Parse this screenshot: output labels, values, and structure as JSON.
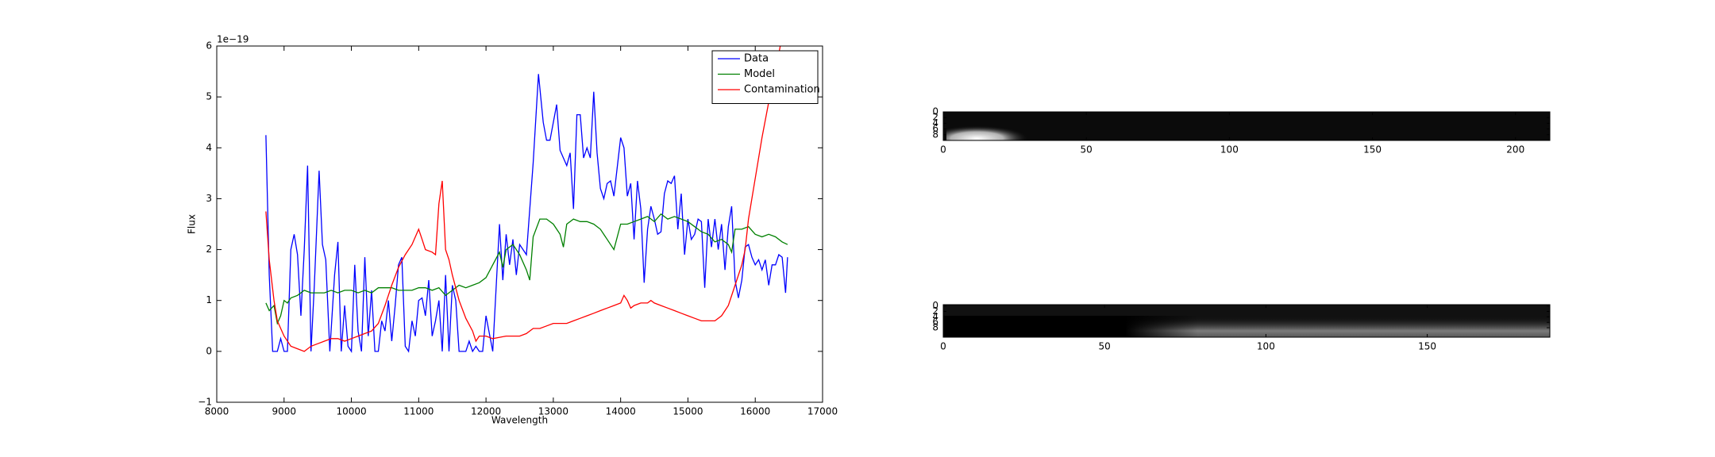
{
  "chart_data": [
    {
      "type": "line",
      "xlabel": "Wavelength",
      "ylabel": "Flux",
      "offset_text": "1e−19",
      "xlim": [
        8000,
        17000
      ],
      "xticks": [
        8000,
        9000,
        10000,
        11000,
        12000,
        13000,
        14000,
        15000,
        16000,
        17000
      ],
      "ylim": [
        -1,
        6
      ],
      "yticks": [
        {
          "value": -1,
          "label": "−1"
        },
        0,
        1,
        2,
        3,
        4,
        5,
        6
      ],
      "legend": "upper right",
      "series": [
        {
          "name": "Data",
          "color": "#0000ff",
          "x": [
            8730,
            8780,
            8830,
            8900,
            8950,
            9000,
            9050,
            9100,
            9150,
            9200,
            9250,
            9300,
            9350,
            9400,
            9450,
            9520,
            9570,
            9620,
            9680,
            9750,
            9800,
            9850,
            9900,
            9950,
            10000,
            10050,
            10100,
            10150,
            10200,
            10250,
            10300,
            10350,
            10400,
            10450,
            10500,
            10550,
            10600,
            10650,
            10700,
            10750,
            10800,
            10850,
            10900,
            10950,
            11000,
            11050,
            11100,
            11150,
            11200,
            11250,
            11300,
            11350,
            11400,
            11450,
            11500,
            11550,
            11600,
            11650,
            11700,
            11750,
            11800,
            11850,
            11900,
            11950,
            12000,
            12100,
            12200,
            12250,
            12300,
            12350,
            12400,
            12450,
            12500,
            12600,
            12700,
            12780,
            12850,
            12900,
            12950,
            13000,
            13050,
            13100,
            13200,
            13250,
            13300,
            13350,
            13400,
            13450,
            13500,
            13550,
            13600,
            13650,
            13700,
            13750,
            13800,
            13850,
            13900,
            14000,
            14050,
            14100,
            14150,
            14200,
            14250,
            14300,
            14350,
            14400,
            14450,
            14500,
            14550,
            14600,
            14650,
            14700,
            14750,
            14800,
            14850,
            14900,
            14950,
            15000,
            15050,
            15100,
            15150,
            15200,
            15250,
            15300,
            15350,
            15400,
            15450,
            15500,
            15550,
            15600,
            15650,
            15700,
            15750,
            15800,
            15850,
            15900,
            15950,
            16000,
            16050,
            16100,
            16150,
            16200,
            16250,
            16300,
            16350,
            16400,
            16450,
            16480
          ],
          "values": [
            4.25,
            1.5,
            0,
            0,
            0.25,
            0,
            0,
            2.0,
            2.3,
            1.9,
            0.7,
            2.0,
            3.65,
            0,
            1.3,
            3.55,
            2.1,
            1.8,
            0,
            1.5,
            2.15,
            0,
            0.9,
            0.1,
            0,
            1.7,
            0.4,
            0,
            1.85,
            0.3,
            1.2,
            0,
            0,
            0.6,
            0.4,
            1.0,
            0.2,
            0.9,
            1.7,
            1.85,
            0.1,
            0,
            0.6,
            0.3,
            1.0,
            1.05,
            0.7,
            1.4,
            0.3,
            0.6,
            1.0,
            0,
            1.5,
            0,
            1.3,
            1.0,
            0,
            0,
            0,
            0.2,
            0,
            0.1,
            0,
            0,
            0.7,
            0,
            2.5,
            1.4,
            2.3,
            1.7,
            2.2,
            1.5,
            2.1,
            1.9,
            3.7,
            5.45,
            4.5,
            4.15,
            4.15,
            4.5,
            4.85,
            3.95,
            3.65,
            3.9,
            2.8,
            4.65,
            4.65,
            3.8,
            4.0,
            3.8,
            5.1,
            3.9,
            3.2,
            3.0,
            3.3,
            3.35,
            3.05,
            4.2,
            4.0,
            3.05,
            3.3,
            2.2,
            3.35,
            2.8,
            1.35,
            2.4,
            2.85,
            2.6,
            2.3,
            2.35,
            3.1,
            3.35,
            3.3,
            3.45,
            2.4,
            3.1,
            1.9,
            2.6,
            2.2,
            2.3,
            2.6,
            2.55,
            1.25,
            2.6,
            2.05,
            2.6,
            2.0,
            2.5,
            1.6,
            2.45,
            2.85,
            1.4,
            1.05,
            1.4,
            2.05,
            2.1,
            1.85,
            1.7,
            1.8,
            1.6,
            1.8,
            1.3,
            1.7,
            1.7,
            1.9,
            1.85,
            1.15,
            1.85
          ]
        },
        {
          "name": "Model",
          "color": "#008000",
          "x": [
            8730,
            8780,
            8850,
            8900,
            8950,
            9000,
            9050,
            9100,
            9200,
            9300,
            9400,
            9500,
            9600,
            9700,
            9800,
            9900,
            10000,
            10100,
            10200,
            10300,
            10400,
            10500,
            10600,
            10700,
            10800,
            10900,
            11000,
            11100,
            11200,
            11300,
            11400,
            11500,
            11600,
            11700,
            11800,
            11900,
            12000,
            12100,
            12200,
            12250,
            12300,
            12400,
            12500,
            12600,
            12650,
            12700,
            12800,
            12900,
            13000,
            13100,
            13150,
            13200,
            13300,
            13400,
            13500,
            13600,
            13700,
            13800,
            13900,
            14000,
            14100,
            14200,
            14300,
            14400,
            14500,
            14600,
            14700,
            14800,
            14900,
            15000,
            15100,
            15200,
            15300,
            15400,
            15500,
            15600,
            15650,
            15700,
            15800,
            15900,
            16000,
            16100,
            16200,
            16300,
            16400,
            16480
          ],
          "values": [
            0.95,
            0.8,
            0.9,
            0.55,
            0.7,
            1.0,
            0.95,
            1.05,
            1.1,
            1.2,
            1.15,
            1.15,
            1.15,
            1.2,
            1.15,
            1.2,
            1.2,
            1.15,
            1.2,
            1.15,
            1.25,
            1.25,
            1.25,
            1.2,
            1.2,
            1.2,
            1.25,
            1.25,
            1.2,
            1.25,
            1.1,
            1.2,
            1.3,
            1.25,
            1.3,
            1.35,
            1.45,
            1.7,
            1.95,
            1.65,
            2.0,
            2.1,
            1.9,
            1.6,
            1.4,
            2.25,
            2.6,
            2.6,
            2.5,
            2.3,
            2.05,
            2.5,
            2.6,
            2.55,
            2.55,
            2.5,
            2.4,
            2.2,
            2.0,
            2.5,
            2.5,
            2.55,
            2.6,
            2.65,
            2.55,
            2.7,
            2.6,
            2.65,
            2.6,
            2.55,
            2.45,
            2.35,
            2.3,
            2.15,
            2.2,
            2.1,
            1.95,
            2.4,
            2.4,
            2.45,
            2.3,
            2.25,
            2.3,
            2.25,
            2.15,
            2.1
          ]
        },
        {
          "name": "Contamination",
          "color": "#ff0000",
          "x": [
            8730,
            8780,
            8850,
            8900,
            9000,
            9100,
            9200,
            9300,
            9400,
            9500,
            9600,
            9700,
            9800,
            9900,
            10000,
            10100,
            10200,
            10300,
            10400,
            10500,
            10600,
            10700,
            10800,
            10900,
            11000,
            11050,
            11100,
            11200,
            11250,
            11300,
            11350,
            11400,
            11450,
            11500,
            11600,
            11700,
            11800,
            11850,
            11900,
            12000,
            12100,
            12300,
            12500,
            12600,
            12700,
            12800,
            12900,
            13000,
            13100,
            13200,
            13300,
            13400,
            13500,
            13600,
            13700,
            13800,
            13900,
            14000,
            14050,
            14100,
            14150,
            14200,
            14300,
            14400,
            14450,
            14500,
            14600,
            14700,
            14800,
            14900,
            15000,
            15100,
            15200,
            15300,
            15400,
            15500,
            15600,
            15700,
            15800,
            15850,
            15900,
            16000,
            16100,
            16200,
            16250,
            16300,
            16400
          ],
          "values": [
            2.75,
            1.8,
            1.0,
            0.6,
            0.3,
            0.1,
            0.05,
            0.0,
            0.1,
            0.15,
            0.2,
            0.25,
            0.25,
            0.2,
            0.25,
            0.3,
            0.35,
            0.4,
            0.55,
            0.9,
            1.3,
            1.65,
            1.9,
            2.1,
            2.4,
            2.2,
            2.0,
            1.95,
            1.9,
            2.9,
            3.35,
            2.0,
            1.8,
            1.5,
            1.0,
            0.65,
            0.4,
            0.2,
            0.3,
            0.3,
            0.25,
            0.3,
            0.3,
            0.35,
            0.45,
            0.45,
            0.5,
            0.55,
            0.55,
            0.55,
            0.6,
            0.65,
            0.7,
            0.75,
            0.8,
            0.85,
            0.9,
            0.95,
            1.1,
            1.0,
            0.85,
            0.9,
            0.95,
            0.95,
            1.0,
            0.95,
            0.9,
            0.85,
            0.8,
            0.75,
            0.7,
            0.65,
            0.6,
            0.6,
            0.6,
            0.7,
            0.9,
            1.3,
            1.7,
            2.0,
            2.6,
            3.4,
            4.2,
            4.9,
            5.2,
            5.5,
            6.2
          ]
        }
      ]
    },
    {
      "type": "image",
      "xlim": [
        0,
        212
      ],
      "xticks": [
        0,
        50,
        100,
        150,
        200
      ],
      "ylim": [
        10,
        0
      ],
      "yticks": [
        0,
        2,
        4,
        6,
        8
      ]
    },
    {
      "type": "image",
      "xlim": [
        0,
        188
      ],
      "xticks": [
        0,
        50,
        100,
        150
      ],
      "ylim": [
        11.5,
        -0.5
      ],
      "yticks": [
        0,
        2,
        4,
        6,
        8
      ]
    }
  ]
}
